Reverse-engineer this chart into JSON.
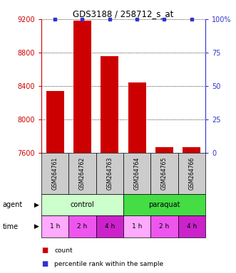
{
  "title": "GDS3188 / 258712_s_at",
  "samples": [
    "GSM264761",
    "GSM264762",
    "GSM264763",
    "GSM264764",
    "GSM264765",
    "GSM264766"
  ],
  "counts": [
    8340,
    9185,
    8760,
    8440,
    7672,
    7672
  ],
  "percentiles": [
    100,
    100,
    100,
    100,
    100,
    100
  ],
  "ylim_left": [
    7600,
    9200
  ],
  "ylim_right": [
    0,
    100
  ],
  "yticks_left": [
    7600,
    8000,
    8400,
    8800,
    9200
  ],
  "yticks_right": [
    0,
    25,
    50,
    75,
    100
  ],
  "bar_color": "#cc0000",
  "dot_color": "#3333cc",
  "agent_groups": [
    {
      "label": "control",
      "color": "#ccffcc",
      "cols": [
        0,
        1,
        2
      ]
    },
    {
      "label": "paraquat",
      "color": "#44dd44",
      "cols": [
        3,
        4,
        5
      ]
    }
  ],
  "time_labels": [
    "1 h",
    "2 h",
    "4 h",
    "1 h",
    "2 h",
    "4 h"
  ],
  "time_colors": [
    "#ffaaff",
    "#ee55ee",
    "#cc22cc",
    "#ffaaff",
    "#ee55ee",
    "#cc22cc"
  ],
  "left_tick_color": "#cc0000",
  "right_tick_color": "#3333cc",
  "sample_box_color": "#cccccc",
  "label_agent": "agent",
  "label_time": "time",
  "legend_count_color": "#cc0000",
  "legend_pct_color": "#3333cc"
}
